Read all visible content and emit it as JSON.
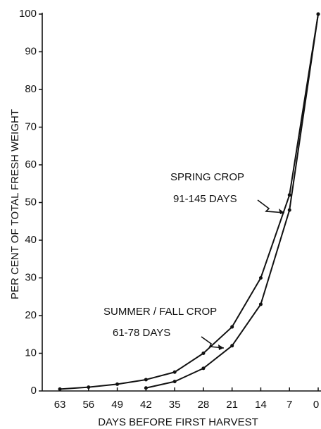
{
  "chart_data": {
    "type": "line",
    "x_label": "DAYS BEFORE FIRST HARVEST",
    "y_label": "PER CENT OF TOTAL FRESH WEIGHT",
    "x": [
      63,
      56,
      49,
      42,
      35,
      28,
      21,
      14,
      7,
      0
    ],
    "series": [
      {
        "name": "SPRING CROP",
        "color": "#111111",
        "values": [
          0.5,
          1,
          1.8,
          3,
          5,
          10,
          17,
          30,
          52,
          100
        ]
      },
      {
        "name": "SUMMER / FALL CROP",
        "color": "#111111",
        "values": [
          null,
          null,
          null,
          0.8,
          2.5,
          6,
          12,
          23,
          48,
          100
        ]
      }
    ],
    "annotations": [
      {
        "lines": [
          "SPRING CROP",
          "91-145 DAYS"
        ]
      },
      {
        "lines": [
          "SUMMER / FALL CROP",
          "61-78 DAYS"
        ]
      }
    ],
    "xlim": [
      67.3,
      0
    ],
    "xticks": [
      63,
      56,
      49,
      42,
      35,
      28,
      21,
      14,
      7,
      0
    ],
    "ylim": [
      0,
      100
    ],
    "yticks": [
      0,
      10,
      20,
      30,
      40,
      50,
      60,
      70,
      80,
      90,
      100
    ]
  }
}
